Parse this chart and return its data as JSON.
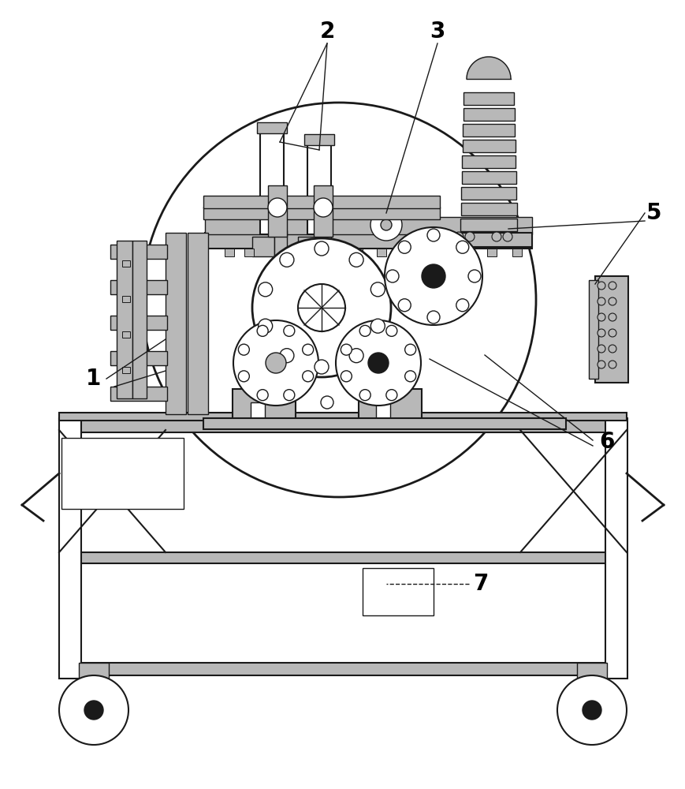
{
  "background_color": "#ffffff",
  "dark_color": "#1a1a1a",
  "light_gray": "#b8b8b8",
  "mid_gray": "#888888",
  "font_size_labels": 20,
  "fig_width": 8.69,
  "fig_height": 10.0,
  "dpi": 100
}
